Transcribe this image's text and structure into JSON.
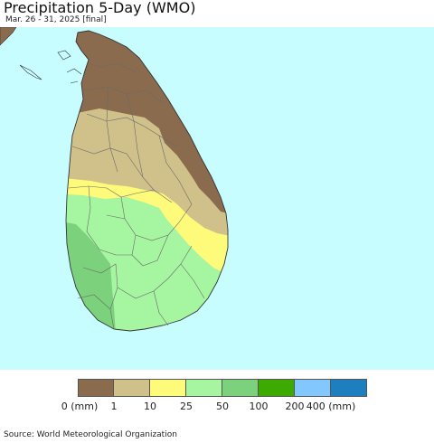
{
  "title": "Precipitation 5-Day (WMO)",
  "subtitle": "Mar. 26 - 31, 2025 [final]",
  "source": "Source: World Meteorological Organization",
  "colors": {
    "ocean": "#c8fdff",
    "land_outside": "#8a6a4a",
    "border_line": "#5a5a5a"
  },
  "legend": {
    "colors": [
      "#8b6b4e",
      "#d0c08a",
      "#fffb7a",
      "#a6f5a0",
      "#7cd17c",
      "#3caa00",
      "#82c8ff",
      "#1e7fbe"
    ],
    "ticks": [
      "0 (mm)",
      "1",
      "10",
      "25",
      "50",
      "100",
      "200",
      "400 (mm)"
    ]
  },
  "zones": [
    {
      "name": "0-1 mm",
      "color": "#8b6b4e"
    },
    {
      "name": "1-10 mm",
      "color": "#d0c08a"
    },
    {
      "name": "10-25 mm",
      "color": "#fffb7a"
    },
    {
      "name": "25-50 mm",
      "color": "#a6f5a0"
    },
    {
      "name": "50-100 mm",
      "color": "#7cd17c"
    }
  ]
}
